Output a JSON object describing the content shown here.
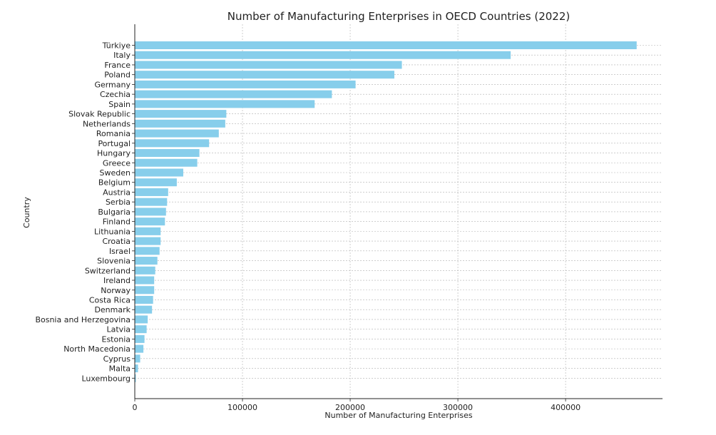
{
  "chart_data": {
    "type": "bar",
    "orientation": "horizontal",
    "title": "Number of Manufacturing Enterprises in OECD Countries (2022)",
    "xlabel": "Number of Manufacturing Enterprises",
    "ylabel": "Country",
    "xlim": [
      0,
      490000
    ],
    "xticks": [
      0,
      100000,
      200000,
      300000,
      400000
    ],
    "xtick_labels": [
      "0",
      "100000",
      "200000",
      "300000",
      "400000"
    ],
    "grid": true,
    "bar_color": "#87ceeb",
    "categories": [
      "Türkiye",
      "Italy",
      "France",
      "Poland",
      "Germany",
      "Czechia",
      "Spain",
      "Slovak Republic",
      "Netherlands",
      "Romania",
      "Portugal",
      "Hungary",
      "Greece",
      "Sweden",
      "Belgium",
      "Austria",
      "Serbia",
      "Bulgaria",
      "Finland",
      "Lithuania",
      "Croatia",
      "Israel",
      "Slovenia",
      "Switzerland",
      "Ireland",
      "Norway",
      "Costa Rica",
      "Denmark",
      "Bosnia and Herzegovina",
      "Latvia",
      "Estonia",
      "North Macedonia",
      "Cyprus",
      "Malta",
      "Luxembourg"
    ],
    "values": [
      466000,
      349000,
      248000,
      241000,
      205000,
      183000,
      167000,
      85000,
      84000,
      78000,
      69000,
      60000,
      58000,
      45000,
      39000,
      31000,
      30000,
      29000,
      28000,
      24000,
      24000,
      23000,
      21000,
      19000,
      18000,
      18000,
      17000,
      16000,
      12000,
      11000,
      9000,
      8000,
      5000,
      3000,
      1000
    ]
  }
}
